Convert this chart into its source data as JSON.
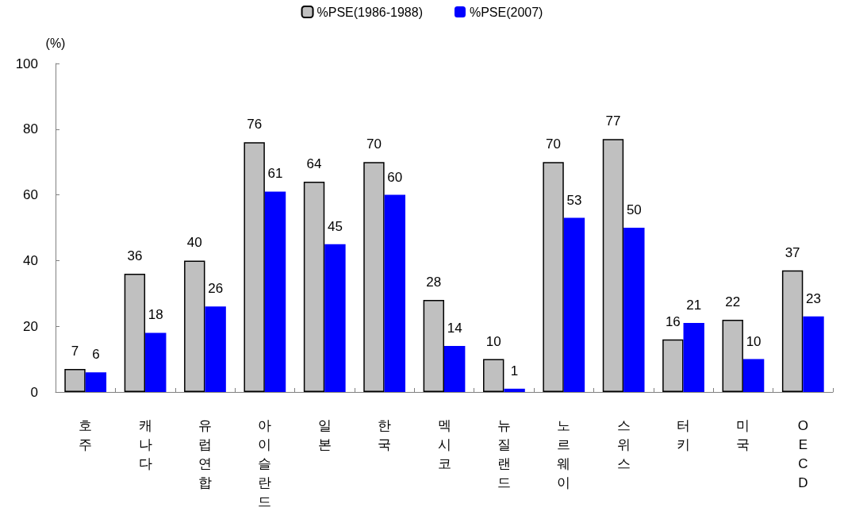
{
  "chart_data": {
    "type": "bar",
    "ylabel": "(%)",
    "categories": [
      "호주",
      "캐나다",
      "유럽연합",
      "아이슬란드",
      "일본",
      "한국",
      "멕시코",
      "뉴질랜드",
      "노르웨이",
      "스위스",
      "터키",
      "미국",
      "OECD"
    ],
    "series": [
      {
        "name": "%PSE(1986-1988)",
        "color": "#c0c0c0",
        "values": [
          7,
          36,
          40,
          76,
          64,
          70,
          28,
          10,
          70,
          77,
          16,
          22,
          37
        ]
      },
      {
        "name": "%PSE(2007)",
        "color": "#0000ff",
        "values": [
          6,
          18,
          26,
          61,
          45,
          60,
          14,
          1,
          53,
          50,
          21,
          10,
          23
        ]
      }
    ],
    "ylim": [
      0,
      100
    ],
    "yticks": [
      0,
      20,
      40,
      60,
      80,
      100
    ],
    "grid": false,
    "legend": "top",
    "data_labels": true
  }
}
